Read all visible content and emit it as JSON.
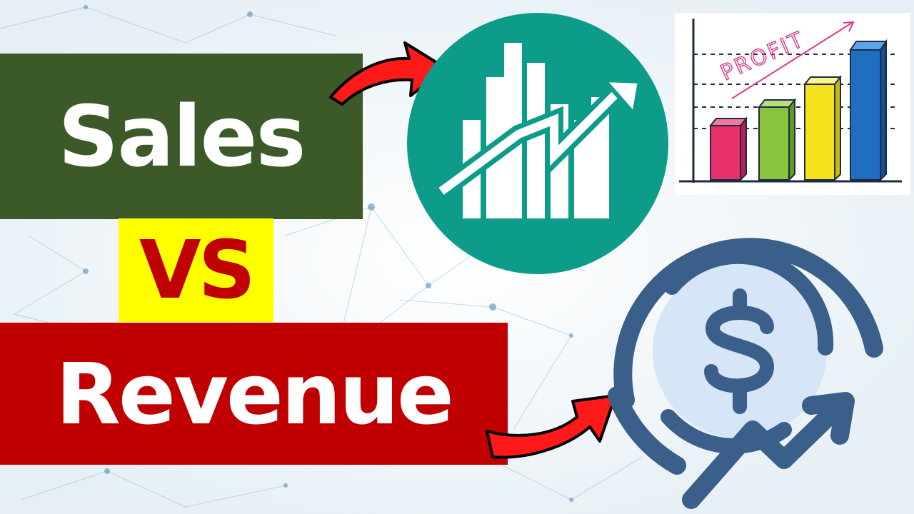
{
  "thumbnail": {
    "title_top": "Sales",
    "title_middle": "VS",
    "title_bottom": "Revenue",
    "sketch_label": "PROFIT"
  },
  "colors": {
    "sales_bg": "#3c5a28",
    "vs_bg": "#ffff00",
    "vs_text": "#c00000",
    "revenue_bg": "#c00000",
    "arrow_red": "#ff1a1a",
    "teal_circle": "#0d9b8a",
    "dollar_blue": "#3a5f8a",
    "sketch_bars": [
      "#e8306a",
      "#88c43c",
      "#f4e21c",
      "#1f6fc0"
    ]
  },
  "icons": [
    "arrow-icon",
    "growth-chart-icon",
    "profit-sketch-chart",
    "dollar-growth-icon"
  ]
}
